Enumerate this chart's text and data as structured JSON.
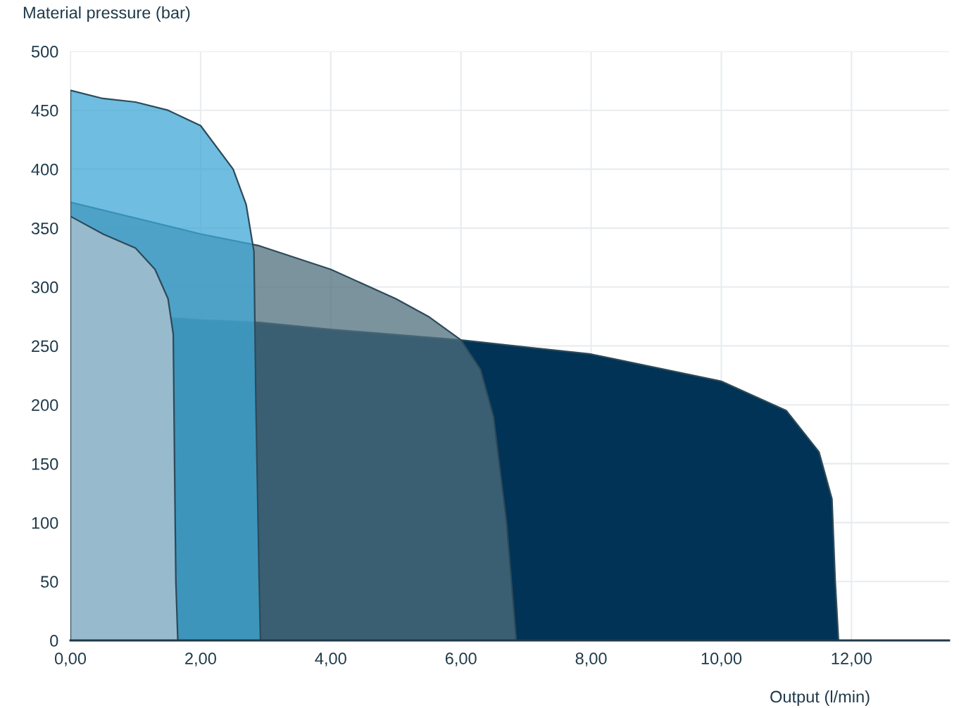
{
  "chart_data": {
    "type": "area",
    "xlabel": "Output (l/min)",
    "ylabel": "Material pressure (bar)",
    "xlim": [
      0,
      13.5
    ],
    "ylim": [
      0,
      500
    ],
    "xticks": [
      {
        "value": 0,
        "label": "0,00"
      },
      {
        "value": 2,
        "label": "2,00"
      },
      {
        "value": 4,
        "label": "4,00"
      },
      {
        "value": 6,
        "label": "6,00"
      },
      {
        "value": 8,
        "label": "8,00"
      },
      {
        "value": 10,
        "label": "10,00"
      },
      {
        "value": 12,
        "label": "12,00"
      }
    ],
    "yticks": [
      0,
      50,
      100,
      150,
      200,
      250,
      300,
      350,
      400,
      450,
      500
    ],
    "grid": true,
    "marker": "none",
    "line_style": "solid",
    "series": [
      {
        "color": "#003355",
        "x": [
          0,
          2,
          2.9,
          4,
          6,
          8,
          10,
          11,
          11.5,
          11.7,
          11.75,
          11.8
        ],
        "values": [
          280,
          272,
          270,
          264,
          255,
          243,
          220,
          195,
          160,
          120,
          50,
          0
        ]
      },
      {
        "color": "#4f6f7c",
        "x": [
          0,
          2,
          2.9,
          4,
          5,
          5.5,
          6,
          6.3,
          6.5,
          6.7,
          6.85
        ],
        "values": [
          372,
          345,
          335,
          315,
          290,
          275,
          255,
          230,
          190,
          100,
          0
        ]
      },
      {
        "color": "#3fa7d6",
        "x": [
          0,
          0.5,
          1,
          1.5,
          2,
          2.5,
          2.7,
          2.82,
          2.85,
          2.9,
          2.92
        ],
        "values": [
          467,
          460,
          457,
          450,
          437,
          400,
          370,
          330,
          200,
          50,
          0
        ]
      },
      {
        "color": "#97bacc",
        "x": [
          0,
          0.5,
          1,
          1.3,
          1.5,
          1.58,
          1.6,
          1.62,
          1.65
        ],
        "values": [
          360,
          345,
          333,
          315,
          290,
          260,
          150,
          50,
          0
        ]
      }
    ]
  }
}
